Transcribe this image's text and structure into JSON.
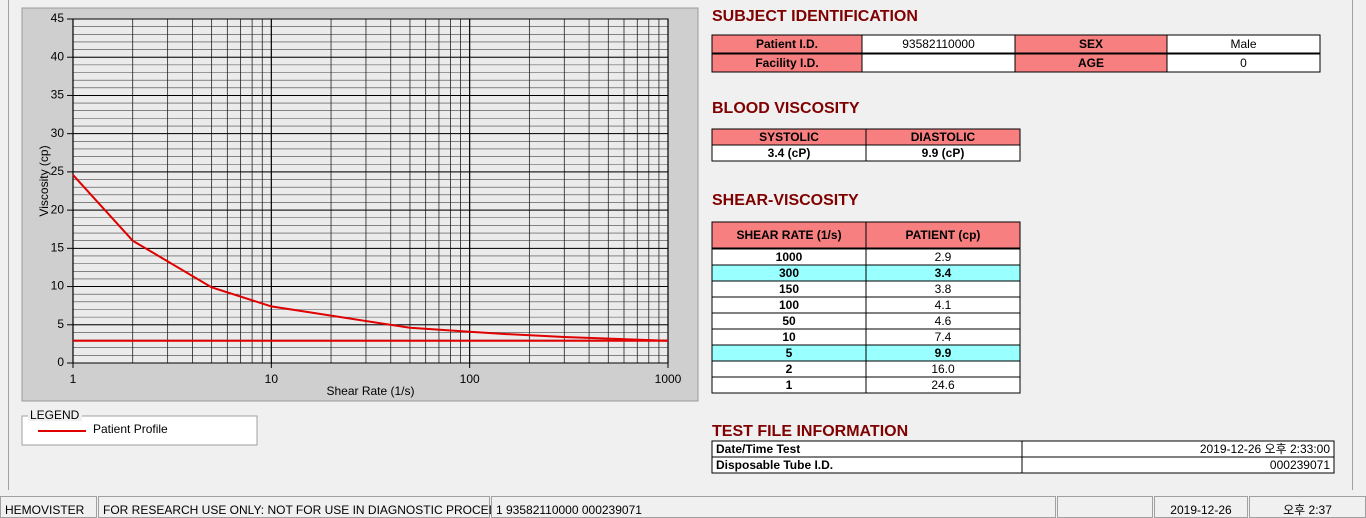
{
  "chart_data": {
    "type": "line",
    "xlabel": "Shear Rate (1/s)",
    "ylabel": "Viscosity (cp)",
    "xlim": [
      1,
      1000
    ],
    "ylim": [
      0,
      45
    ],
    "log_x": true,
    "xticks": [
      1,
      10,
      100,
      1000
    ],
    "yticks": [
      0,
      5,
      10,
      15,
      20,
      25,
      30,
      35,
      40,
      45
    ],
    "grid": true,
    "minor_grid": true,
    "series": [
      {
        "name": "Patient Profile",
        "color": "#e00000",
        "x": [
          1,
          2,
          5,
          10,
          50,
          100,
          150,
          300,
          1000
        ],
        "values": [
          24.6,
          16.0,
          9.9,
          7.4,
          4.6,
          4.1,
          3.8,
          3.4,
          2.9
        ]
      },
      {
        "color": "#e00000",
        "x": [
          1,
          1000
        ],
        "values": [
          2.9,
          2.9
        ]
      }
    ]
  },
  "legend_title": "LEGEND",
  "subject_identification": {
    "title": "SUBJECT IDENTIFICATION",
    "patient_id": {
      "label": "Patient I.D.",
      "value": "93582110000"
    },
    "facility_id": {
      "label": "Facility I.D."
    },
    "sex": {
      "label": "SEX",
      "value": "Male"
    },
    "age": {
      "label": "AGE",
      "value": "0"
    }
  },
  "blood_viscosity": {
    "title": "BLOOD VISCOSITY",
    "headers": [
      "SYSTOLIC",
      "DIASTOLIC"
    ],
    "values": [
      "3.4 (cP)",
      "9.9 (cP)"
    ]
  },
  "shear_viscosity": {
    "title": "SHEAR-VISCOSITY",
    "headers": [
      "SHEAR RATE (1/s)",
      "PATIENT (cp)"
    ],
    "highlight_color": "#99ffff",
    "rows": [
      {
        "rate": "1000",
        "patient": "2.9"
      },
      {
        "rate": "300",
        "patient": "3.4",
        "highlight": true
      },
      {
        "rate": "150",
        "patient": "3.8"
      },
      {
        "rate": "100",
        "patient": "4.1"
      },
      {
        "rate": "50",
        "patient": "4.6"
      },
      {
        "rate": "10",
        "patient": "7.4"
      },
      {
        "rate": "5",
        "patient": "9.9",
        "highlight": true
      },
      {
        "rate": "2",
        "patient": "16.0"
      },
      {
        "rate": "1",
        "patient": "24.6"
      }
    ]
  },
  "test_file": {
    "title": "TEST FILE INFORMATION",
    "rows": [
      [
        "Date/Time Test",
        "2019-12-26   오후 2:33:00"
      ],
      [
        "Disposable Tube I.D.",
        "000239071"
      ]
    ]
  },
  "status_bar": [
    "HEMOVISTER",
    "FOR RESEARCH USE ONLY: NOT FOR USE IN DIAGNOSTIC PROCEDURES",
    "1  93582110000  000239071",
    "2019-12-26",
    "오후 2:37"
  ]
}
